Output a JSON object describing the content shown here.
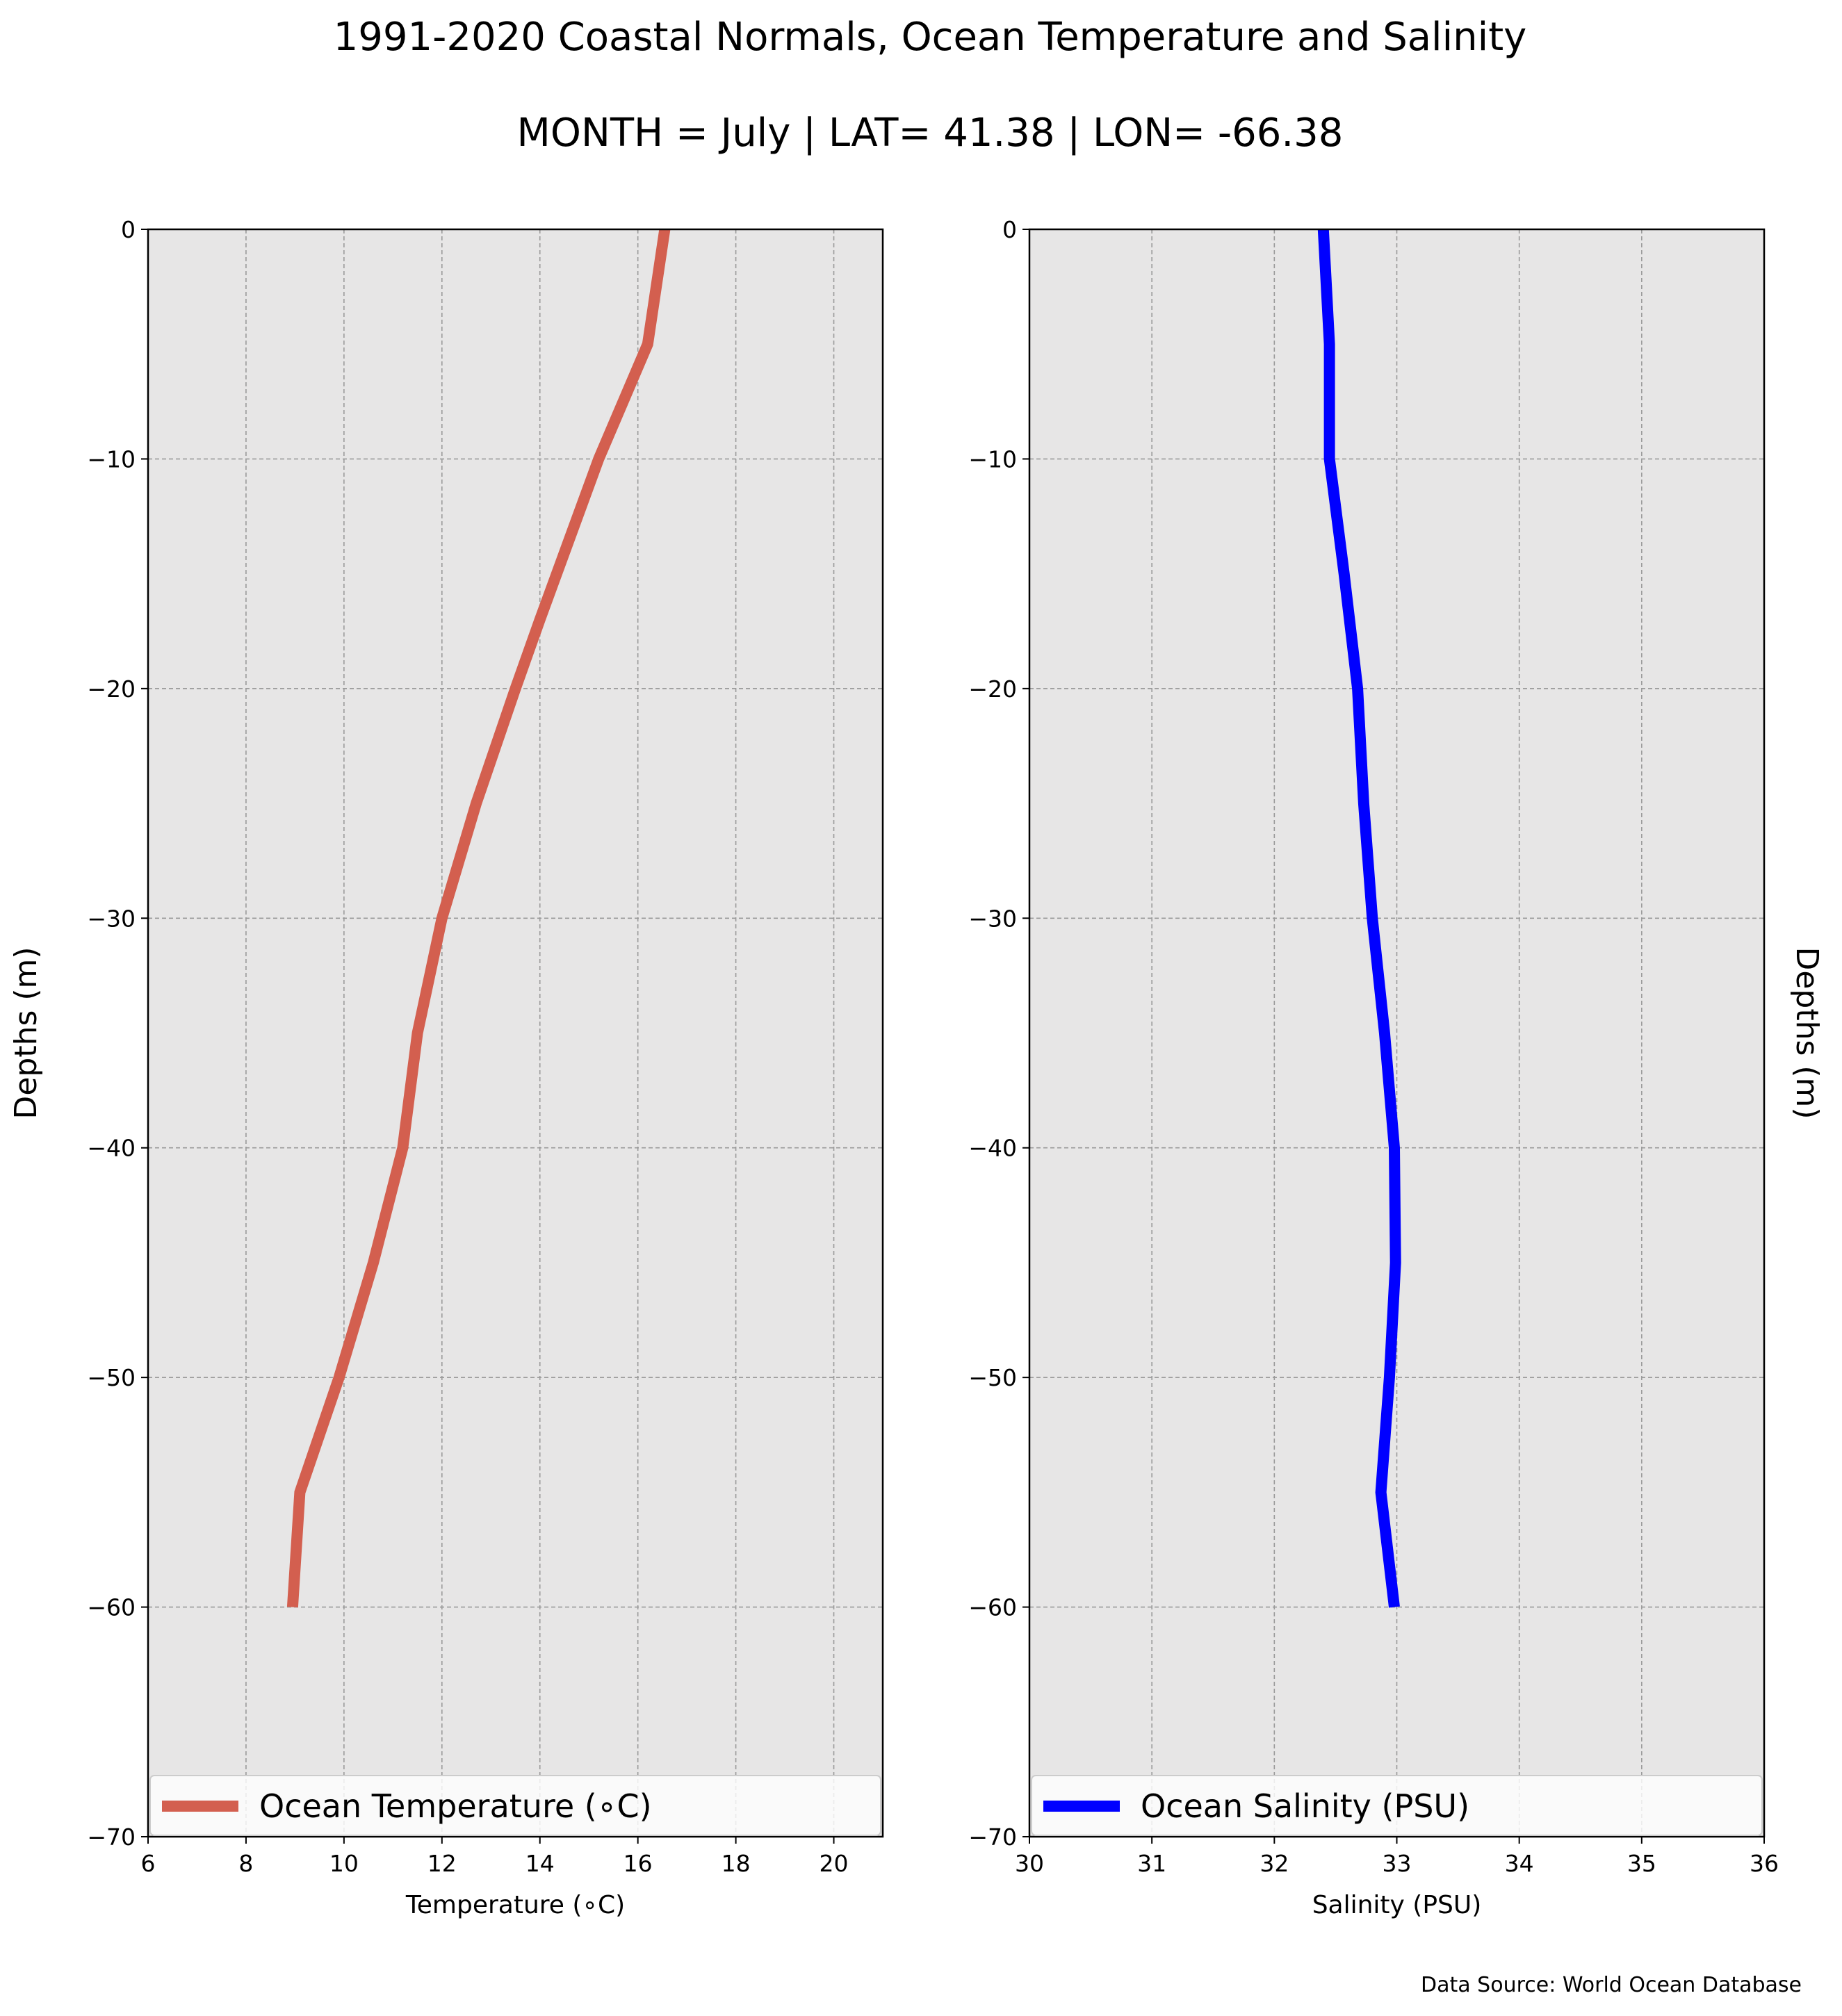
{
  "title": "1991-2020 Coastal Normals, Ocean Temperature and Salinity",
  "subtitle": "MONTH = July | LAT= 41.38 | LON= -66.38",
  "source_note": "Data Source: World Ocean Database",
  "chart_data": [
    {
      "type": "line",
      "xlabel": "Temperature (∘C)",
      "ylabel": "Depths (m)",
      "xlim": [
        6,
        21
      ],
      "ylim": [
        -70,
        0
      ],
      "xticks": [
        6,
        8,
        10,
        12,
        14,
        16,
        18,
        20
      ],
      "yticks": [
        0,
        -10,
        -20,
        -30,
        -40,
        -50,
        -60,
        -70
      ],
      "grid": true,
      "legend_position": "lower-center",
      "color": "#d35f4f",
      "series": [
        {
          "name": "Ocean Temperature (∘C)",
          "x": [
            16.55,
            16.2,
            15.2,
            14.0,
            13.5,
            12.7,
            12.0,
            11.5,
            11.2,
            10.6,
            9.9,
            9.1,
            8.95
          ],
          "y": [
            0,
            -5,
            -10,
            -17,
            -20,
            -25,
            -30,
            -35,
            -40,
            -45,
            -50,
            -55,
            -60
          ]
        }
      ]
    },
    {
      "type": "line",
      "xlabel": "Salinity (PSU)",
      "ylabel": "Depths (m)",
      "xlim": [
        30,
        36
      ],
      "ylim": [
        -70,
        0
      ],
      "xticks": [
        30,
        31,
        32,
        33,
        34,
        35,
        36
      ],
      "yticks": [
        0,
        -10,
        -20,
        -30,
        -40,
        -50,
        -60,
        -70
      ],
      "grid": true,
      "legend_position": "lower-center",
      "color": "#0000ff",
      "series": [
        {
          "name": "Ocean Salinity (PSU)",
          "x": [
            32.4,
            32.45,
            32.45,
            32.57,
            32.68,
            32.73,
            32.8,
            32.9,
            32.98,
            32.99,
            32.94,
            32.87,
            32.98
          ],
          "y": [
            0,
            -5,
            -10,
            -15,
            -20,
            -25,
            -30,
            -35,
            -40,
            -45,
            -50,
            -55,
            -60
          ]
        }
      ]
    }
  ]
}
